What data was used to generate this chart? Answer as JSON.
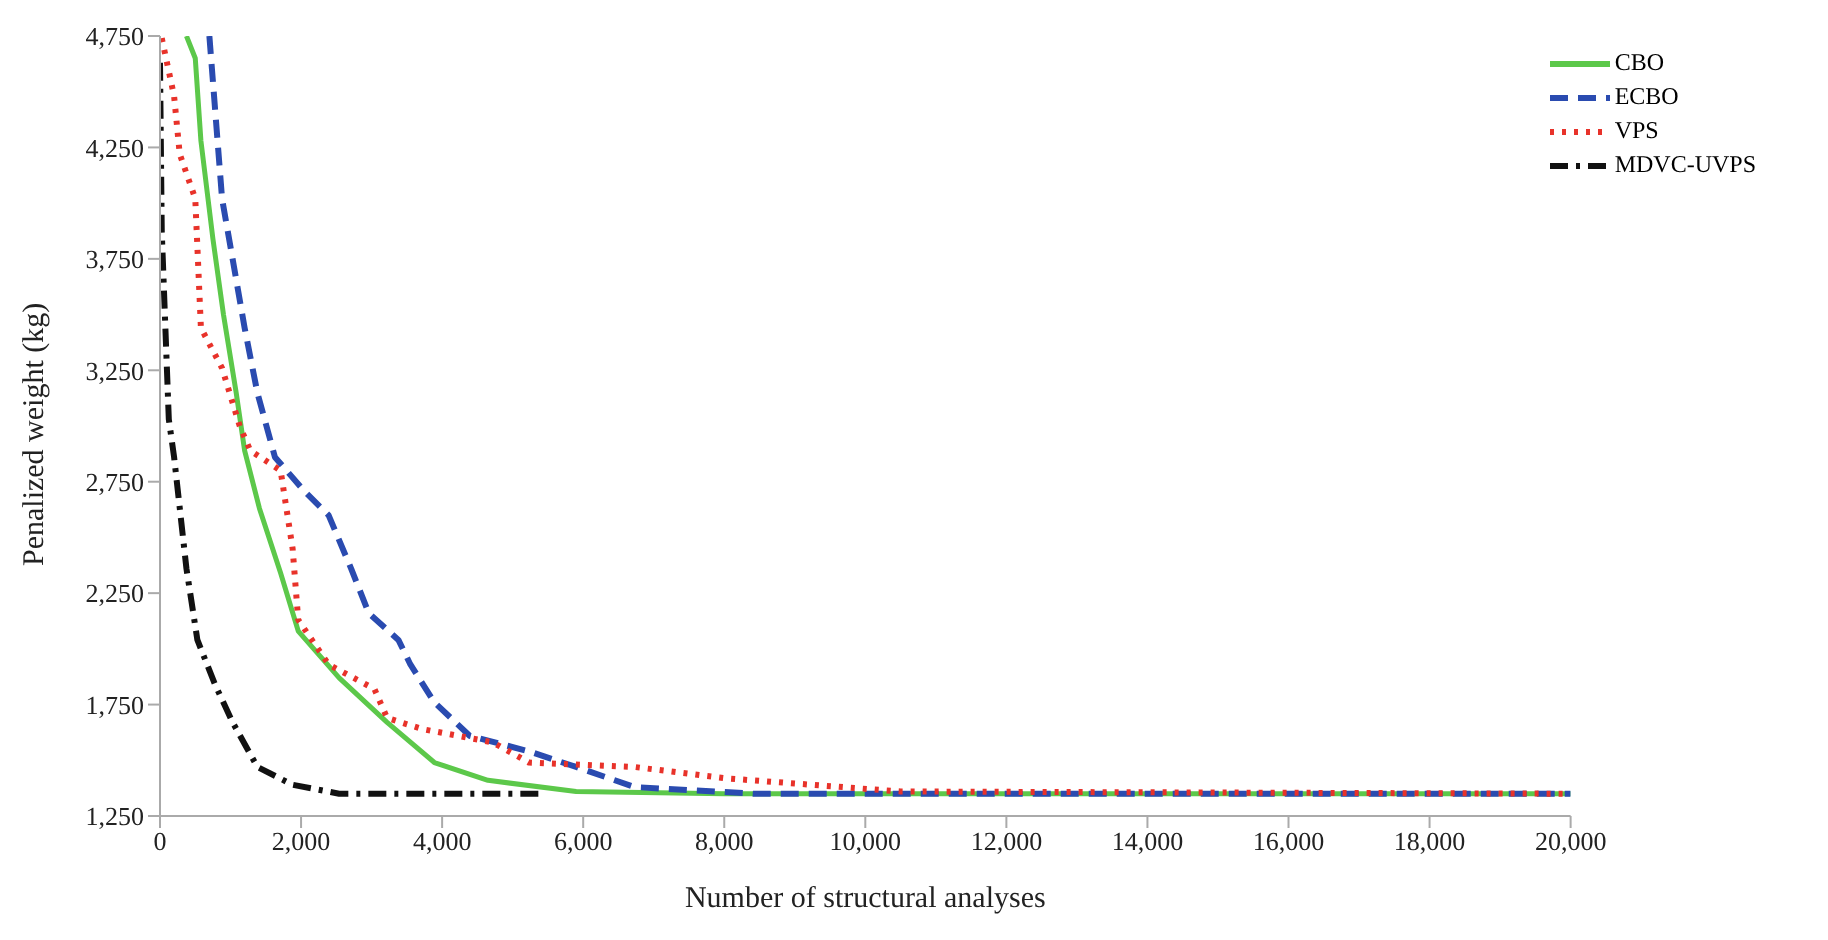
{
  "chart_data": {
    "type": "line",
    "xlabel": "Number of structural analyses",
    "ylabel": "Penalized weight (kg)",
    "xlim": [
      0,
      20000
    ],
    "ylim": [
      1250,
      4750
    ],
    "xticks": [
      0,
      {
        "value": 2000,
        "label": "2,000"
      },
      {
        "value": 4000,
        "label": "4,000"
      },
      {
        "value": 6000,
        "label": "6,000"
      },
      {
        "value": 8000,
        "label": "8,000"
      },
      {
        "value": 10000,
        "label": "10,000"
      },
      {
        "value": 12000,
        "label": "12,000"
      },
      {
        "value": 14000,
        "label": "14,000"
      },
      {
        "value": 16000,
        "label": "16,000"
      },
      {
        "value": 18000,
        "label": "18,000"
      },
      {
        "value": 20000,
        "label": "20,000"
      }
    ],
    "yticks": [
      {
        "value": 1250,
        "label": "1,250"
      },
      {
        "value": 1750,
        "label": "1,750"
      },
      {
        "value": 2250,
        "label": "2,250"
      },
      {
        "value": 2750,
        "label": "2,750"
      },
      {
        "value": 3250,
        "label": "3,250"
      },
      {
        "value": 3750,
        "label": "3,750"
      },
      {
        "value": 4250,
        "label": "4,250"
      },
      {
        "value": 4750,
        "label": "4,750"
      }
    ],
    "grid": false,
    "legend": "top right",
    "marker": "none",
    "series": [
      {
        "name": "CBO",
        "color": "#5cc84a",
        "line_style": "solid",
        "x": [
          375,
          500,
          580,
          750,
          900,
          1080,
          1200,
          1410,
          1710,
          1960,
          2540,
          3220,
          3890,
          4650,
          5900,
          8000,
          20000
        ],
        "values": [
          4750,
          4650,
          4280,
          3840,
          3500,
          3150,
          2890,
          2630,
          2340,
          2080,
          1870,
          1670,
          1490,
          1410,
          1360,
          1350,
          1350
        ]
      },
      {
        "name": "ECBO",
        "color": "#2a4bb0",
        "line_style": "dashed",
        "x": [
          700,
          880,
          1200,
          1380,
          1630,
          2040,
          2390,
          2710,
          2960,
          3380,
          3550,
          3890,
          4390,
          5230,
          5900,
          6730,
          8420,
          20000
        ],
        "values": [
          4750,
          4020,
          3440,
          3150,
          2860,
          2710,
          2600,
          2360,
          2160,
          2040,
          1930,
          1760,
          1610,
          1540,
          1470,
          1380,
          1350,
          1350
        ]
      },
      {
        "name": "VPS",
        "color": "#e8322a",
        "line_style": "dotted",
        "x": [
          25,
          200,
          280,
          500,
          580,
          880,
          1130,
          1280,
          1710,
          1880,
          1960,
          2390,
          3040,
          3220,
          3720,
          4720,
          5230,
          6730,
          7990,
          9250,
          10500,
          20000
        ],
        "values": [
          4740,
          4480,
          4220,
          4020,
          3440,
          3260,
          3000,
          2890,
          2800,
          2450,
          2130,
          1930,
          1820,
          1690,
          1640,
          1580,
          1490,
          1470,
          1420,
          1390,
          1360,
          1350
        ]
      },
      {
        "name": "MDVC-UVPS",
        "color": "#111111",
        "line_style": "dashdot",
        "x": [
          0,
          25,
          125,
          200,
          375,
          530,
          780,
          1030,
          1380,
          1880,
          2540,
          5400
        ],
        "values": [
          4630,
          3870,
          3030,
          2860,
          2360,
          2040,
          1840,
          1670,
          1470,
          1390,
          1350,
          1350
        ]
      }
    ]
  }
}
